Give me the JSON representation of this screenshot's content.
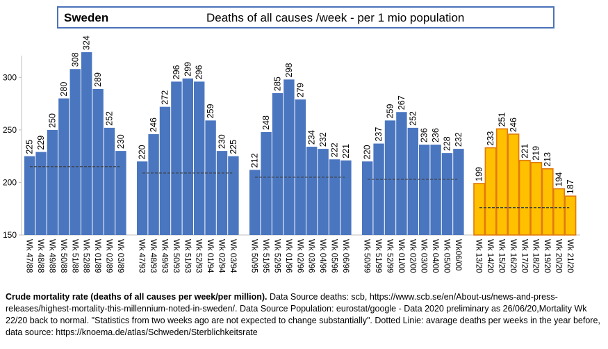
{
  "header": {
    "country": "Sweden",
    "title": "Deaths of all causes /week  - per 1 mio  population"
  },
  "caption": {
    "bold": "Crude mortality rate (deaths of all causes per week/per million).",
    "text": " Data Source deaths: scb, https://www.scb.se/en/About-us/news-and-press-releases/highest-mortality-this-millennium-noted-in-sweden/. Data Source Population: eurostat/google -  Data 2020 preliminary as 26/06/20,Mortality Wk 22/20 back to normal. \"Statistics from two weeks ago are not expected to change substantially\".  Dotted Linie: avarage deaths per weeks in the year before, data source: https://knoema.de/atlas/Schweden/Sterblichkeitsrate"
  },
  "colors": {
    "blue": "#4a76c0",
    "yellow": "#ffc000",
    "orange_border": "#e07a10",
    "axis": "#bfbfbf",
    "dash": "#404040"
  },
  "chart_data": {
    "type": "bar",
    "title": "Deaths of all causes /week  - per 1 mio  population",
    "ylim": [
      150,
      330
    ],
    "yticks": [
      150,
      200,
      250,
      300
    ],
    "groups": [
      {
        "categories": [
          "Wk 47/88",
          "Wk 48/88",
          "Wk 49/88",
          "Wk 50/88",
          "Wk 51/88",
          "Wk 52/88",
          "Wk 01/89",
          "Wk 02/89",
          "Wk 03/89"
        ],
        "values": [
          225,
          229,
          250,
          280,
          308,
          324,
          289,
          252,
          230
        ],
        "average": 215,
        "color": "blue"
      },
      {
        "categories": [
          "Wk 47/93",
          "Wk 48/93",
          "Wk 49/93",
          "Wk 50/93",
          "Wk 51/93",
          "Wk 52/93",
          "Wk 01/94",
          "Wk 02/94",
          "Wk 03/94"
        ],
        "values": [
          220,
          246,
          272,
          296,
          299,
          296,
          259,
          230,
          225
        ],
        "average": 209,
        "color": "blue"
      },
      {
        "categories": [
          "Wk 50/95",
          "Wk 51/95",
          "Wk 52/95",
          "Wk 01/96",
          "Wk 02/96",
          "Wk 03/96",
          "Wk 04/96",
          "Wk 05/96",
          "Wk 06/96"
        ],
        "values": [
          212,
          248,
          285,
          298,
          279,
          234,
          232,
          222,
          221
        ],
        "average": 205,
        "color": "blue"
      },
      {
        "categories": [
          "Wk 50/99",
          "Wk 51/99",
          "Wk 52/99",
          "Wk 01/00",
          "Wk 02/00",
          "Wk 03/00",
          "Wk 04/00",
          "Wk 05/00",
          "Wk06/00"
        ],
        "values": [
          220,
          237,
          259,
          267,
          252,
          236,
          236,
          228,
          232
        ],
        "average": 203,
        "color": "blue"
      },
      {
        "categories": [
          "Wk 13/20",
          "Wk 14/20",
          "Wk 15/20",
          "Wk 16/20",
          "Wk 17/20",
          "Wk 18/20",
          "Wk 19/20",
          "Wk 20/20",
          "Wk 21/20"
        ],
        "values": [
          199,
          233,
          251,
          246,
          221,
          219,
          213,
          194,
          187
        ],
        "average": 176,
        "color": "yellow"
      }
    ]
  }
}
